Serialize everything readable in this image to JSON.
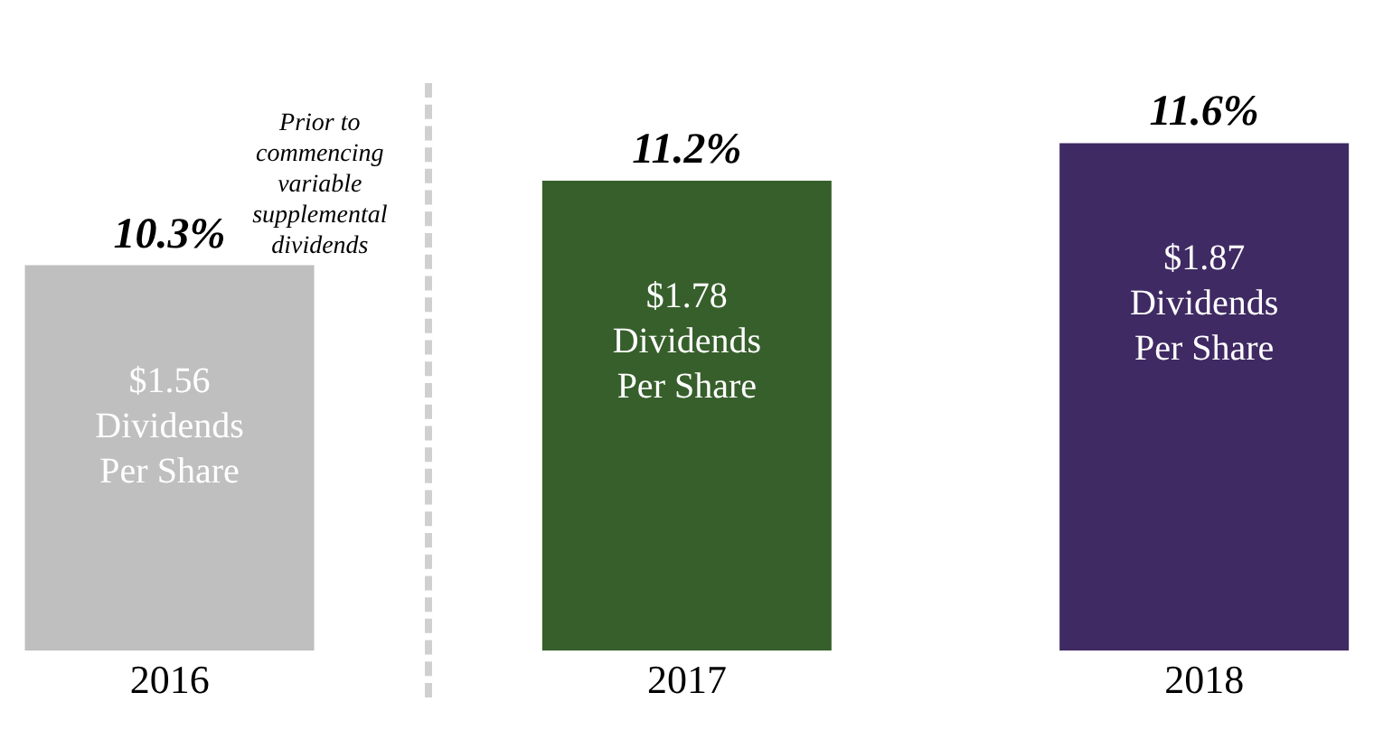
{
  "chart_data": {
    "type": "bar",
    "categories": [
      "2016",
      "2017",
      "2018"
    ],
    "values": [
      10.3,
      11.2,
      11.6
    ],
    "value_labels": [
      "10.3%",
      "11.2%",
      "11.6%"
    ],
    "colors": [
      "#bfbfbf",
      "#375f2b",
      "#3f2a63"
    ],
    "ylim": [
      6.2,
      12.2
    ],
    "annotations": [
      "$1.56 Dividends Per Share",
      "$1.78 Dividends Per Share",
      "$1.87 Dividends Per Share",
      "Prior to commencing variable supplemental dividends"
    ]
  }
}
